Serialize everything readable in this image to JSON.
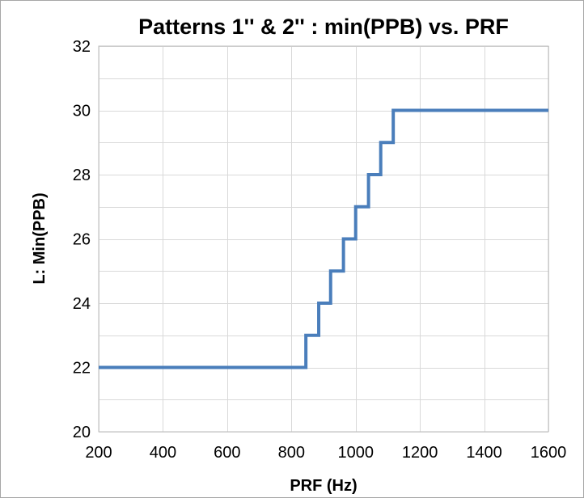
{
  "chart_data": {
    "type": "line",
    "title": "Patterns 1'' & 2'' : min(PPB) vs. PRF",
    "xlabel": "PRF (Hz)",
    "ylabel": "L: Min(PPB)",
    "xlim": [
      200,
      1600
    ],
    "ylim": [
      20,
      32
    ],
    "xticks": [
      200,
      400,
      600,
      800,
      1000,
      1200,
      1400,
      1600
    ],
    "yticks": [
      20,
      22,
      24,
      26,
      28,
      30,
      32
    ],
    "x_minor_step": 200,
    "y_minor_step": 1,
    "grid": true,
    "legend": "none",
    "series": [
      {
        "color": "#4a7ebb",
        "step": "post",
        "points": [
          [
            200,
            22
          ],
          [
            845,
            23
          ],
          [
            885,
            24
          ],
          [
            922,
            25
          ],
          [
            962,
            26
          ],
          [
            1000,
            27
          ],
          [
            1040,
            28
          ],
          [
            1078,
            29
          ],
          [
            1117,
            30
          ],
          [
            1600,
            30
          ]
        ]
      }
    ]
  }
}
